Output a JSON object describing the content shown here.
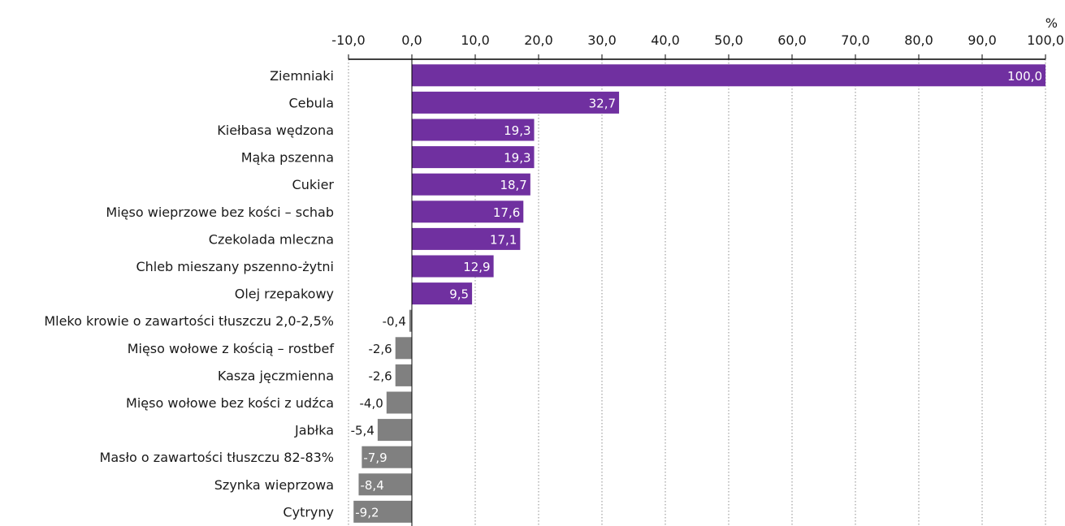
{
  "chart_data": {
    "type": "bar",
    "orientation": "horizontal",
    "unit": "%",
    "categories": [
      "Ziemniaki",
      "Cebula",
      "Kiełbasa wędzona",
      "Mąka pszenna",
      "Cukier",
      "Mięso wieprzowe bez kości – schab",
      "Czekolada mleczna",
      "Chleb mieszany pszenno-żytni",
      "Olej rzepakowy",
      "Mleko krowie o zawartości tłuszczu 2,0-2,5%",
      "Mięso wołowe z kością – rostbef",
      "Kasza jęczmienna",
      "Mięso wołowe bez kości z udźca",
      "Jabłka",
      "Masło o zawartości tłuszczu 82-83%",
      "Szynka wieprzowa",
      "Cytryny"
    ],
    "values": [
      100.0,
      32.7,
      19.3,
      19.3,
      18.7,
      17.6,
      17.1,
      12.9,
      9.5,
      -0.4,
      -2.6,
      -2.6,
      -4.0,
      -5.4,
      -7.9,
      -8.4,
      -9.2
    ],
    "value_labels": [
      "100,0",
      "32,7",
      "19,3",
      "19,3",
      "18,7",
      "17,6",
      "17,1",
      "12,9",
      "9,5",
      "-0,4",
      "-2,6",
      "-2,6",
      "-4,0",
      "-5,4",
      "-7,9",
      "-8,4",
      "-9,2"
    ],
    "xlim": [
      -10,
      100
    ],
    "x_ticks": [
      -10,
      0,
      10,
      20,
      30,
      40,
      50,
      60,
      70,
      80,
      90,
      100
    ],
    "x_tick_labels": [
      "-10,0",
      "0,0",
      "10,0",
      "20,0",
      "30,0",
      "40,0",
      "50,0",
      "60,0",
      "70,0",
      "80,0",
      "90,0",
      "100,0"
    ],
    "axis_position": "top",
    "grid": "vertical dotted",
    "colors": {
      "positive": "#7030a0",
      "negative": "#808080",
      "label_on_bar": "#ffffff",
      "label_outside": "#1a1a1a",
      "axis": "#000000",
      "grid": "#8c8c8c"
    }
  }
}
